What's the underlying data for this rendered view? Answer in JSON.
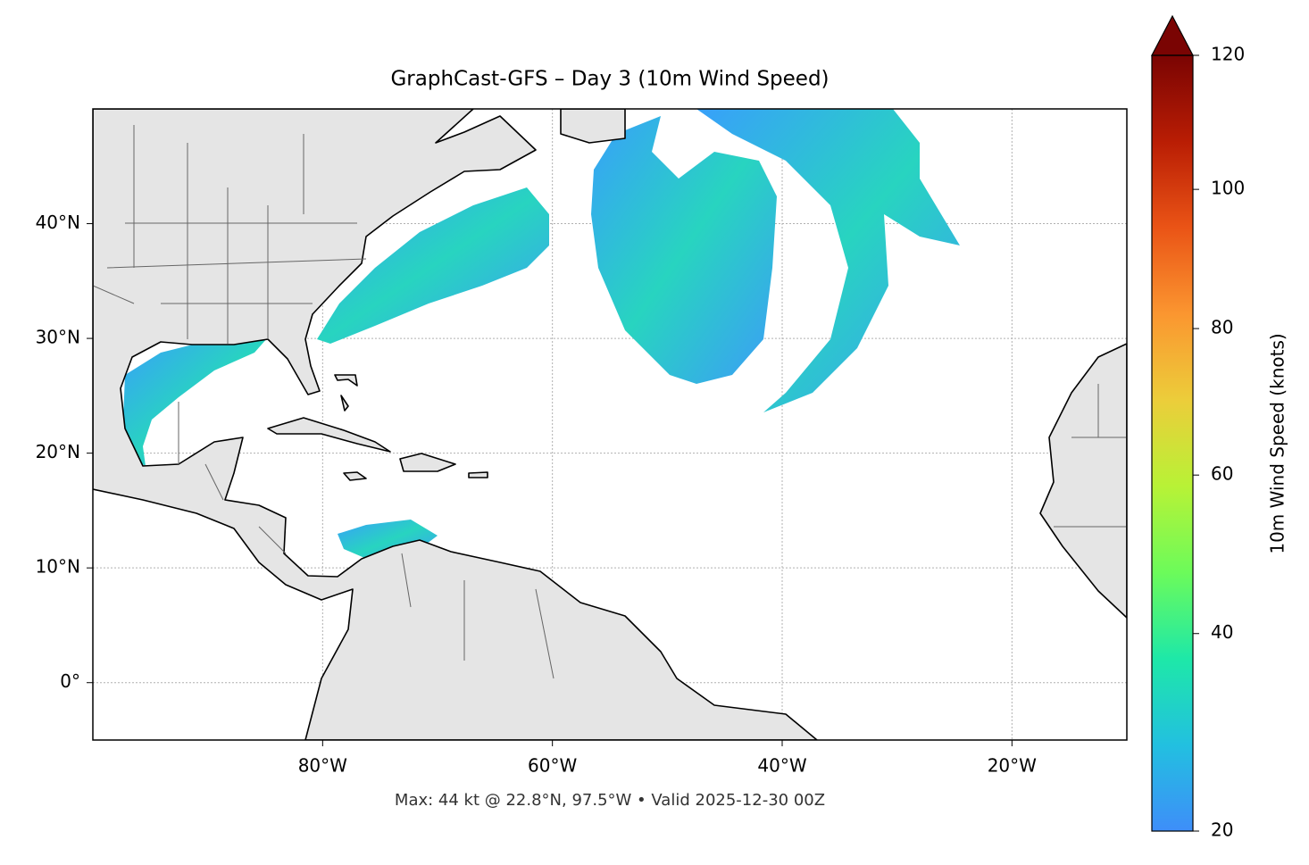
{
  "chart_data": {
    "type": "map",
    "title": "GraphCast-GFS – Day 3 (10m Wind Speed)",
    "footer": "Max: 44 kt @ 22.8°N, 97.5°W • Valid 2025-12-30 00Z",
    "xlim": [
      -100,
      -10
    ],
    "ylim": [
      -5,
      50
    ],
    "xticks": [
      {
        "value": -80,
        "label": "80°W"
      },
      {
        "value": -60,
        "label": "60°W"
      },
      {
        "value": -40,
        "label": "40°W"
      },
      {
        "value": -20,
        "label": "20°W"
      }
    ],
    "yticks": [
      {
        "value": 0,
        "label": "0°"
      },
      {
        "value": 10,
        "label": "10°N"
      },
      {
        "value": 20,
        "label": "20°N"
      },
      {
        "value": 30,
        "label": "30°N"
      },
      {
        "value": 40,
        "label": "40°N"
      }
    ],
    "grid": true,
    "colorbar": {
      "label": "10m Wind Speed (knots)",
      "lim": [
        20,
        120
      ],
      "ticks": [
        20,
        40,
        60,
        80,
        100,
        120
      ],
      "norm": "power",
      "gamma": 0.85,
      "extend": "max",
      "colors": [
        "#3e8ef9",
        "#22c0e0",
        "#1ee8a8",
        "#6cfb5a",
        "#b8f236",
        "#eccd3a",
        "#fb9630",
        "#ea5416",
        "#b91d04",
        "#7a0403"
      ]
    }
  }
}
